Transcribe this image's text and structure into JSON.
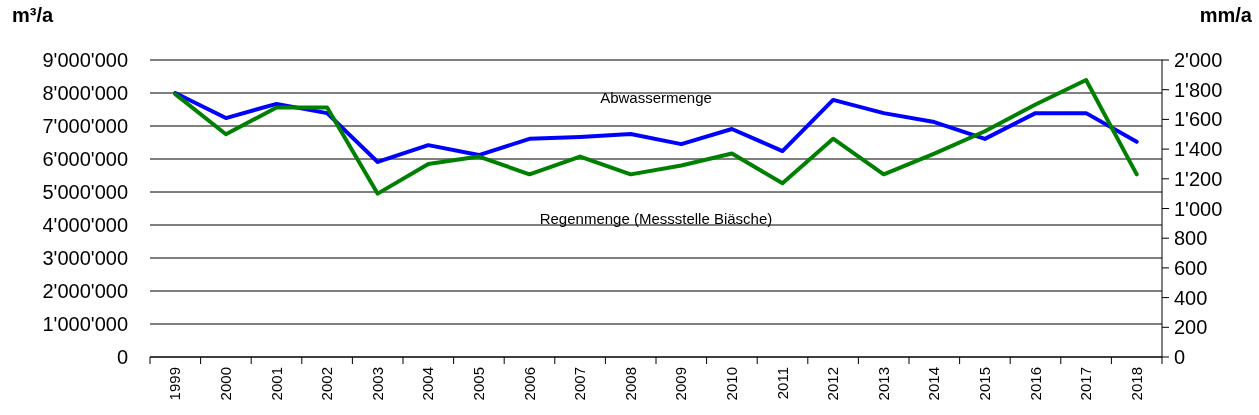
{
  "chart_data": {
    "type": "line",
    "ylabel": "m³/a",
    "y2label": "mm/a",
    "categories": [
      "1999",
      "2000",
      "2001",
      "2002",
      "2003",
      "2004",
      "2005",
      "2006",
      "2007",
      "2008",
      "2009",
      "2010",
      "2011",
      "2012",
      "2013",
      "2014",
      "2015",
      "2016",
      "2017",
      "2018"
    ],
    "series": [
      {
        "name": "Abwassermenge",
        "color": "#0000ff",
        "values": [
          8000000,
          7240000,
          7670000,
          7390000,
          5910000,
          6420000,
          6120000,
          6610000,
          6670000,
          6760000,
          6450000,
          6910000,
          6240000,
          7790000,
          7390000,
          7120000,
          6610000,
          7390000,
          7390000,
          6520000
        ]
      },
      {
        "name": "Regenmenge (Messstelle Biäsche)",
        "color": "#008000",
        "axis": "y2",
        "values": [
          1770,
          1500,
          1680,
          1680,
          1100,
          1300,
          1350,
          1230,
          1350,
          1230,
          1290,
          1370,
          1170,
          1470,
          1230,
          1370,
          1520,
          1700,
          1865,
          1230
        ]
      }
    ],
    "ylim": [
      0,
      9000000
    ],
    "yticks": [
      0,
      {
        "value": 1000000,
        "label": "1'000'000"
      },
      {
        "value": 2000000,
        "label": "2'000'000"
      },
      {
        "value": 3000000,
        "label": "3'000'000"
      },
      {
        "value": 4000000,
        "label": "4'000'000"
      },
      {
        "value": 5000000,
        "label": "5'000'000"
      },
      {
        "value": 6000000,
        "label": "6'000'000"
      },
      {
        "value": 7000000,
        "label": "7'000'000"
      },
      {
        "value": 8000000,
        "label": "8'000'000"
      },
      {
        "value": 9000000,
        "label": "9'000'000"
      }
    ],
    "y2lim": [
      0,
      2000
    ],
    "y2ticks": [
      0,
      200,
      400,
      600,
      800,
      {
        "value": 1000,
        "label": "1'000"
      },
      {
        "value": 1200,
        "label": "1'200"
      },
      {
        "value": 1400,
        "label": "1'400"
      },
      {
        "value": 1600,
        "label": "1'600"
      },
      {
        "value": 1800,
        "label": "1'800"
      },
      {
        "value": 2000,
        "label": "2'000"
      }
    ],
    "grid": "y",
    "line_style": "solid",
    "marker": "none"
  }
}
